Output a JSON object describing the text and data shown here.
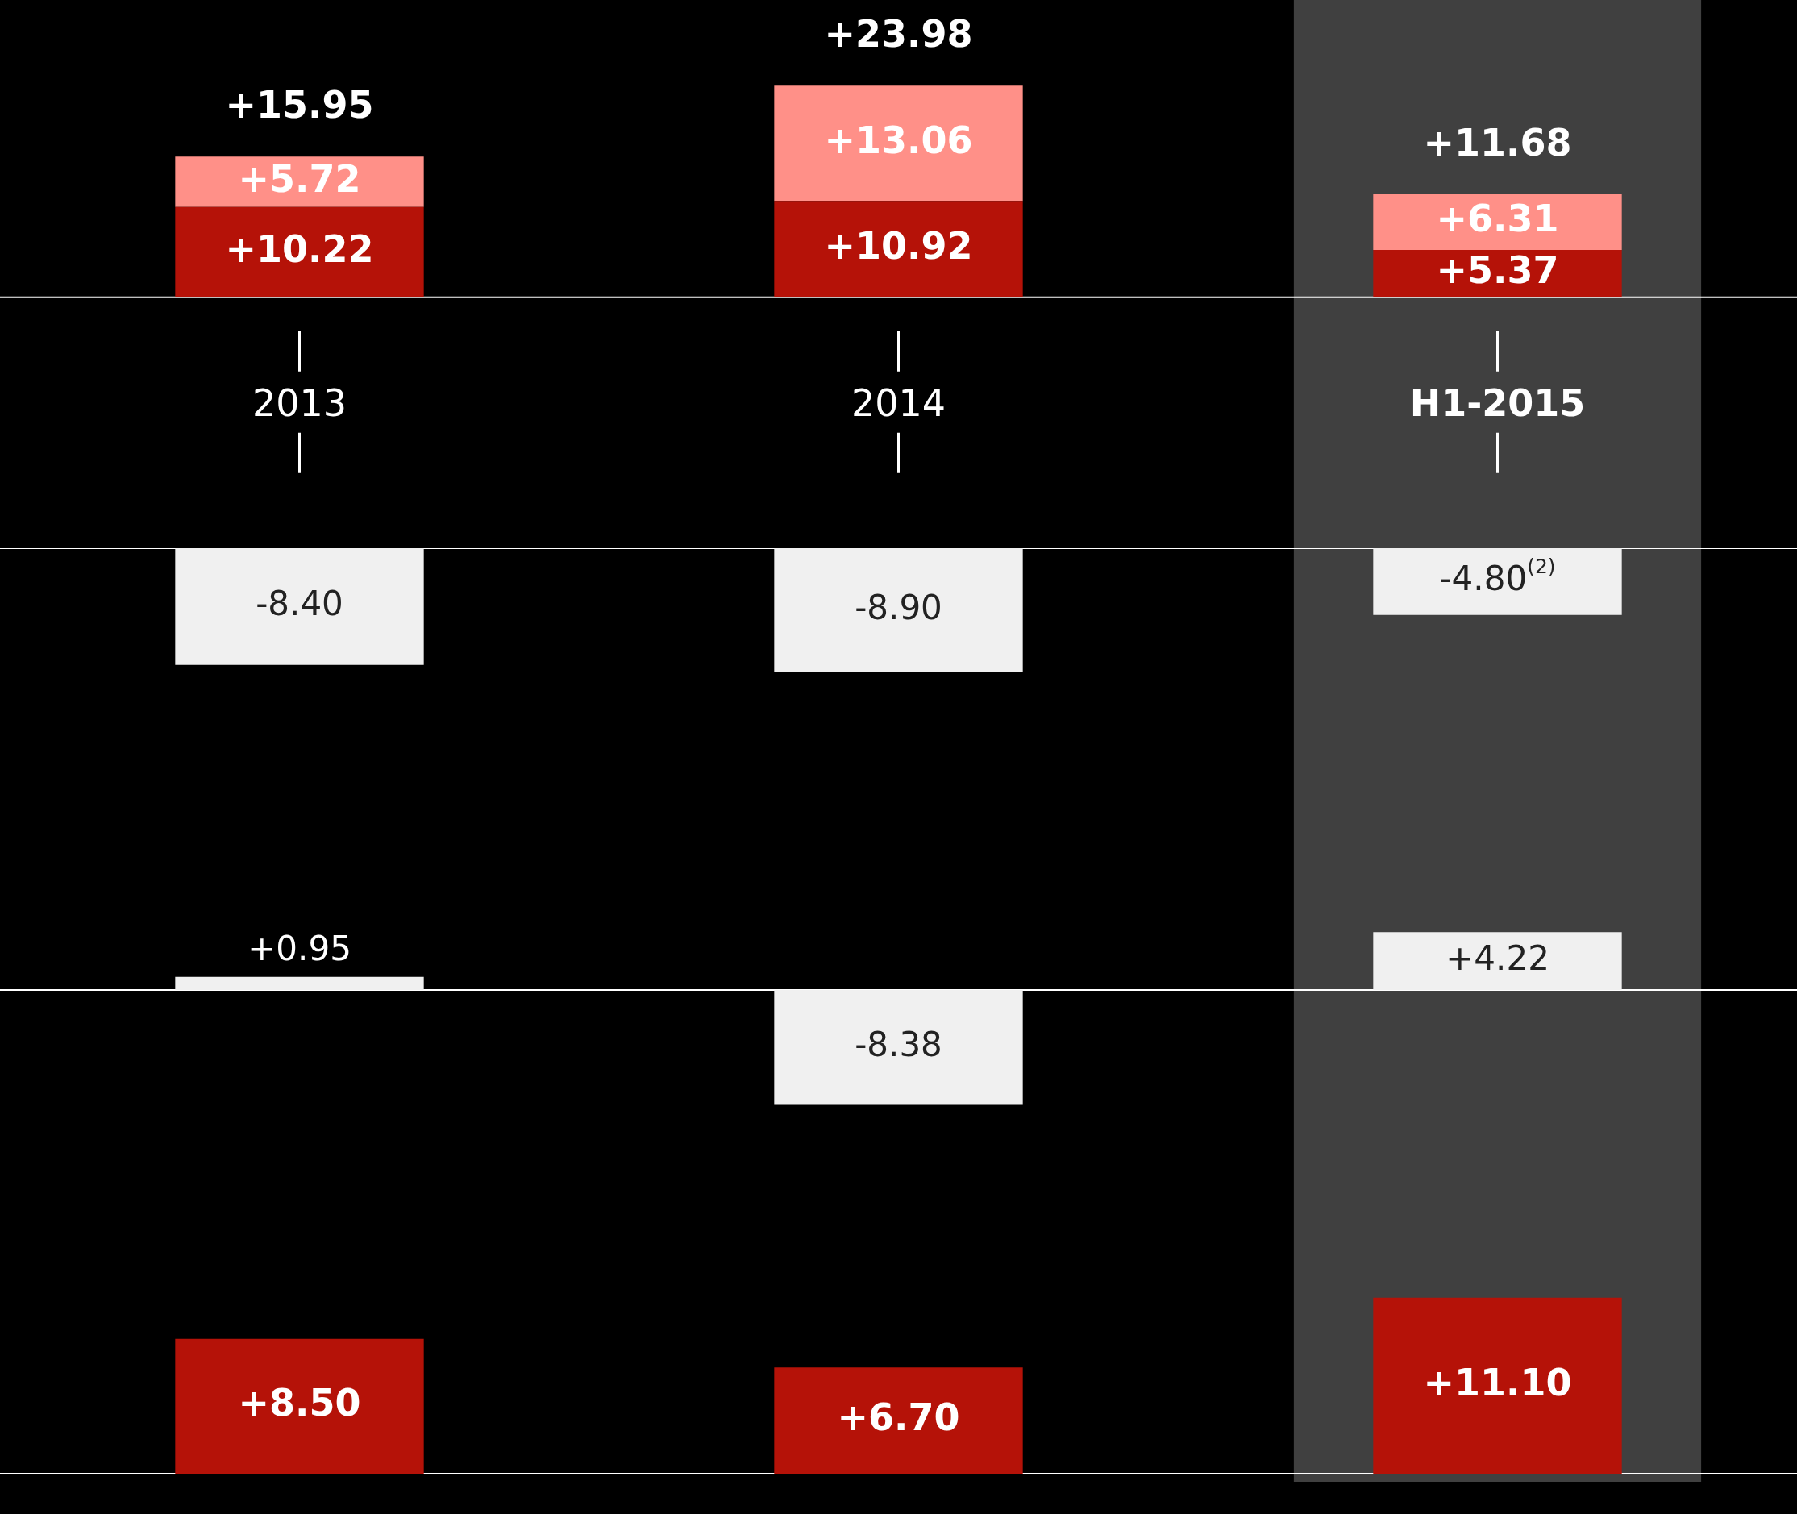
{
  "chart_data": [
    {
      "type": "bar",
      "categories": [
        "2013",
        "2014",
        "H1-2015"
      ],
      "stacked": true,
      "tick_labels": "x",
      "series": [
        {
          "color": "#b51208",
          "values": [
            10.22,
            10.92,
            5.37
          ],
          "value_labels": [
            "+10.22",
            "+10.92",
            "+5.37"
          ]
        },
        {
          "color": "#ff9088",
          "values": [
            5.72,
            13.06,
            6.31
          ],
          "value_labels": [
            "+5.72",
            "+13.06",
            "+6.31"
          ]
        }
      ],
      "totals": [
        "+15.95",
        "+23.98",
        "+11.68"
      ],
      "bands": [
        {
          "axis": "x",
          "from": "H1-2015",
          "to": "H1-2015",
          "color": "#404040"
        }
      ]
    },
    {
      "type": "bar",
      "categories": [
        "2013",
        "2014",
        "H1-2015"
      ],
      "tick_labels": false,
      "ylim": [
        -18,
        0
      ],
      "color": "#f0f0f0",
      "values": [
        -8.4,
        -8.9,
        -4.8
      ],
      "value_labels": [
        "-8.40",
        "-8.90",
        "-4.80$^{(2)}$"
      ],
      "bands": [
        {
          "axis": "x",
          "from": "H1-2015",
          "to": "H1-2015",
          "color": "#404040"
        }
      ]
    },
    {
      "type": "bar",
      "categories": [
        "2013",
        "2014",
        "H1-2015"
      ],
      "tick_labels": false,
      "ylim": [
        -12,
        14
      ],
      "color": "#f0f0f0",
      "values": [
        0.95,
        -8.38,
        4.22
      ],
      "value_labels": [
        "+0.95",
        "-8.38",
        "+4.22"
      ],
      "bands": [
        {
          "axis": "x",
          "from": "H1-2015",
          "to": "H1-2015",
          "color": "#404040"
        }
      ]
    },
    {
      "type": "bar",
      "categories": [
        "2013",
        "2014",
        "H1-2015"
      ],
      "tick_labels": false,
      "color": "#b51208",
      "values": [
        8.5,
        6.7,
        11.1
      ],
      "value_labels": [
        "+8.50",
        "+6.70",
        "+11.10"
      ],
      "bands": [
        {
          "axis": "x",
          "from": "H1-2015",
          "to": "H1-2015",
          "color": "#404040"
        }
      ]
    }
  ]
}
